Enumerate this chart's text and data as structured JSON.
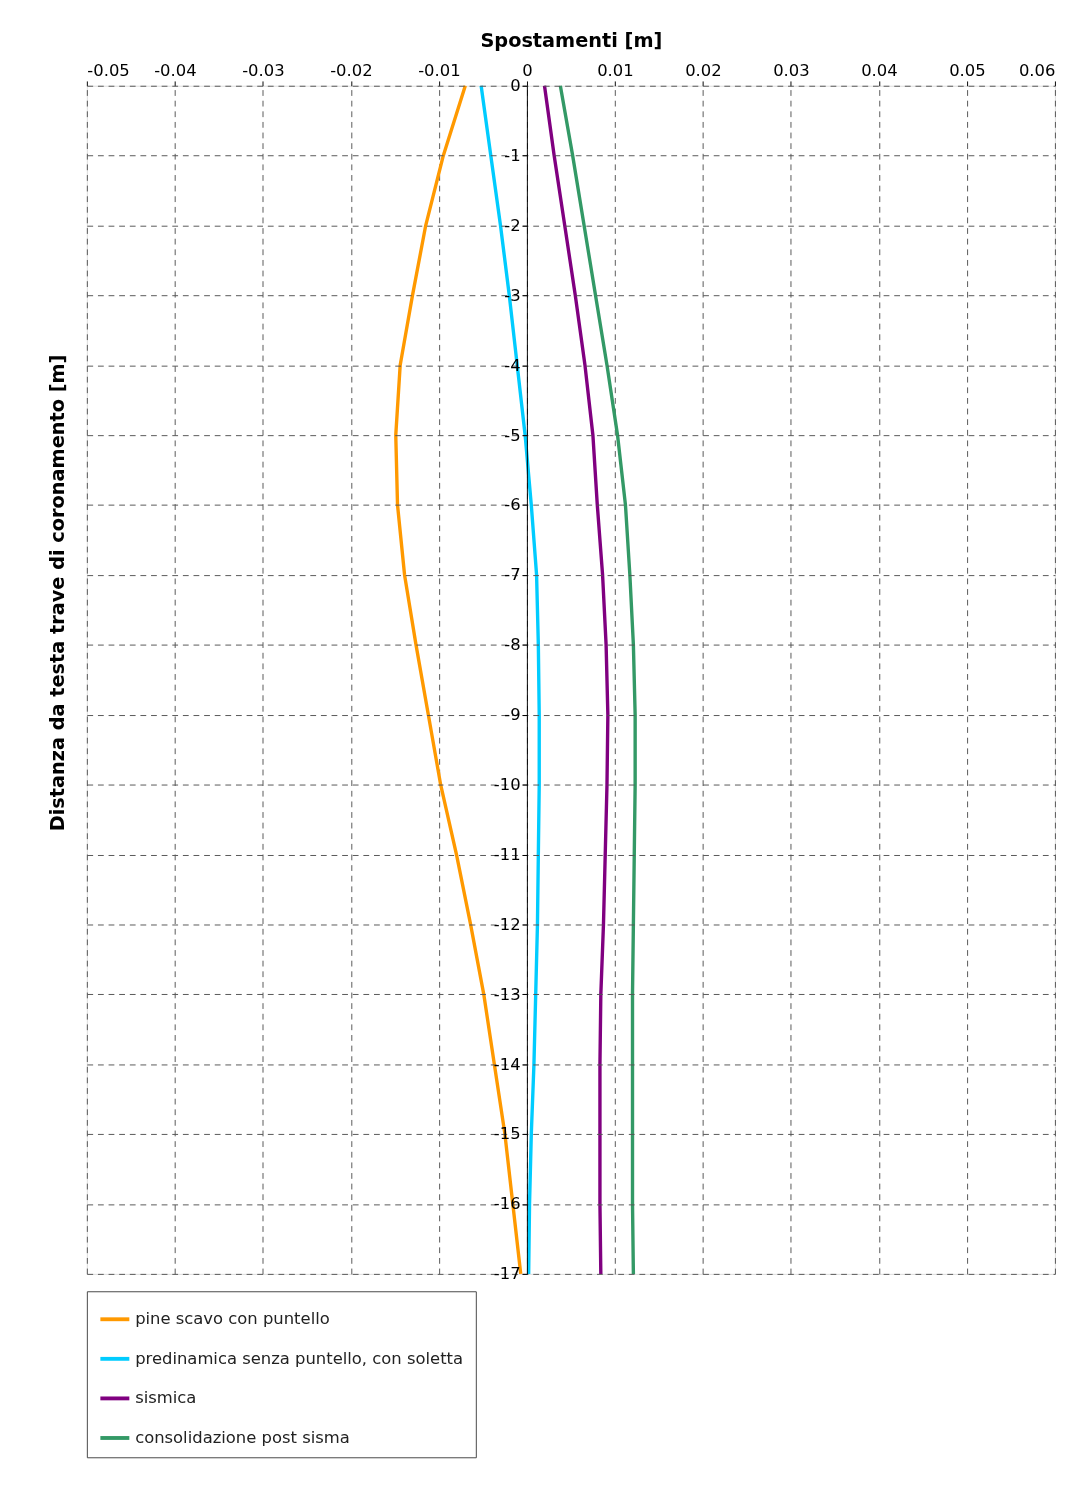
{
  "chart_data": {
    "type": "line",
    "orientation": "horizontal",
    "xlabel": "Spostamenti [m]",
    "ylabel": "Distanza da testa trave di coronamento [m]",
    "x": [
      0,
      -1,
      -2,
      -3,
      -4,
      -5,
      -6,
      -7,
      -8,
      -9,
      -10,
      -11,
      -12,
      -13,
      -14,
      -15,
      -16,
      -17
    ],
    "series": [
      {
        "name": "pine scavo con puntello",
        "color": "#ff9900",
        "values": [
          -0.007,
          -0.0095,
          -0.0115,
          -0.013,
          -0.0144,
          -0.0149,
          -0.0147,
          -0.0139,
          -0.0126,
          -0.0112,
          -0.0098,
          -0.008,
          -0.0064,
          -0.0049,
          -0.0037,
          -0.0025,
          -0.0016,
          -0.0007
        ]
      },
      {
        "name": "predinamica senza puntello, con soletta",
        "color": "#00ccff",
        "values": [
          -0.0052,
          -0.0041,
          -0.003,
          -0.002,
          -0.0011,
          -0.0002,
          0.0005,
          0.0011,
          0.0013,
          0.0014,
          0.0014,
          0.0013,
          0.0012,
          0.001,
          0.0008,
          0.0005,
          0.0003,
          0.0002
        ]
      },
      {
        "name": "sismica",
        "color": "#800080",
        "values": [
          0.002,
          0.0031,
          0.0043,
          0.0055,
          0.0066,
          0.0075,
          0.008,
          0.0086,
          0.009,
          0.0092,
          0.0091,
          0.0089,
          0.0087,
          0.0084,
          0.0083,
          0.0083,
          0.0083,
          0.0084
        ]
      },
      {
        "name": "consolidazione post sisma",
        "color": "#339966",
        "values": [
          0.0038,
          0.0052,
          0.0065,
          0.0078,
          0.0091,
          0.0103,
          0.0112,
          0.0117,
          0.0121,
          0.0123,
          0.0123,
          0.0122,
          0.0121,
          0.012,
          0.012,
          0.012,
          0.012,
          0.0121
        ]
      }
    ],
    "xlim": [
      -0.05,
      0.06
    ],
    "xticks": [
      -0.05,
      -0.04,
      -0.03,
      -0.02,
      -0.01,
      0,
      0.01,
      0.02,
      0.03,
      0.04,
      0.05,
      0.06
    ],
    "ylim": [
      -17,
      0
    ],
    "yticks": [
      0,
      -1,
      -2,
      -3,
      -4,
      -5,
      -6,
      -7,
      -8,
      -9,
      -10,
      -11,
      -12,
      -13,
      -14,
      -15,
      -16,
      -17
    ],
    "grid": true,
    "legend": "bottom left",
    "marker": "none",
    "line_style": "solid"
  }
}
